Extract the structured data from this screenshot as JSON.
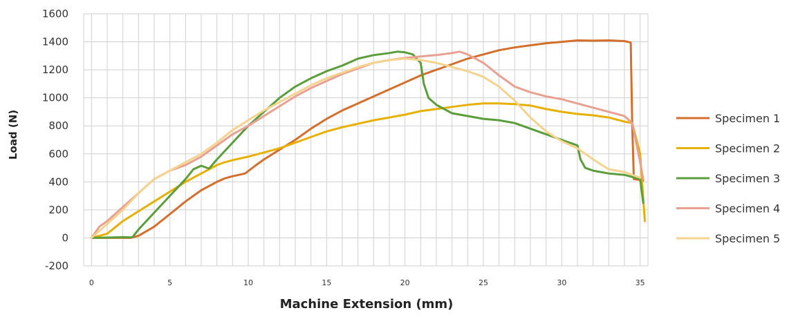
{
  "chart_data": {
    "type": "line",
    "title": "",
    "xlabel": "Machine Extension (mm)",
    "ylabel": "Load (N)",
    "xlim": [
      -0.5,
      35.5
    ],
    "ylim": [
      -200,
      1600
    ],
    "x_ticks": [
      0,
      5,
      10,
      15,
      20,
      25,
      30,
      35
    ],
    "y_ticks": [
      -200,
      0,
      200,
      400,
      600,
      800,
      1000,
      1200,
      1400,
      1600
    ],
    "x_minor_step": 1,
    "grid": true,
    "legend_position": "right",
    "series": [
      {
        "name": "Specimen 1",
        "color": "#d46e2b",
        "points": [
          [
            0,
            0
          ],
          [
            2.5,
            0
          ],
          [
            3,
            15
          ],
          [
            4,
            80
          ],
          [
            5,
            170
          ],
          [
            6,
            260
          ],
          [
            7,
            340
          ],
          [
            8,
            400
          ],
          [
            8.5,
            425
          ],
          [
            9,
            440
          ],
          [
            9.8,
            460
          ],
          [
            10.5,
            520
          ],
          [
            11,
            560
          ],
          [
            12,
            630
          ],
          [
            13,
            700
          ],
          [
            14,
            780
          ],
          [
            15,
            850
          ],
          [
            16,
            910
          ],
          [
            17,
            960
          ],
          [
            18,
            1010
          ],
          [
            19,
            1060
          ],
          [
            20,
            1110
          ],
          [
            21,
            1160
          ],
          [
            22,
            1200
          ],
          [
            23,
            1240
          ],
          [
            24,
            1280
          ],
          [
            25,
            1310
          ],
          [
            26,
            1340
          ],
          [
            27,
            1360
          ],
          [
            28,
            1375
          ],
          [
            29,
            1390
          ],
          [
            30,
            1400
          ],
          [
            31,
            1410
          ],
          [
            32,
            1408
          ],
          [
            33,
            1410
          ],
          [
            34,
            1405
          ],
          [
            34.4,
            1395
          ],
          [
            34.5,
            800
          ],
          [
            34.6,
            420
          ],
          [
            35.2,
            410
          ]
        ]
      },
      {
        "name": "Specimen 2",
        "color": "#e7b000",
        "points": [
          [
            0,
            0
          ],
          [
            1,
            30
          ],
          [
            2,
            120
          ],
          [
            3,
            190
          ],
          [
            4,
            260
          ],
          [
            5,
            330
          ],
          [
            6,
            400
          ],
          [
            7,
            460
          ],
          [
            8,
            520
          ],
          [
            8.5,
            540
          ],
          [
            9,
            555
          ],
          [
            10,
            580
          ],
          [
            11,
            610
          ],
          [
            12,
            640
          ],
          [
            13,
            680
          ],
          [
            14,
            720
          ],
          [
            15,
            760
          ],
          [
            16,
            790
          ],
          [
            17,
            815
          ],
          [
            18,
            840
          ],
          [
            19,
            860
          ],
          [
            20,
            880
          ],
          [
            21,
            905
          ],
          [
            22,
            920
          ],
          [
            23,
            935
          ],
          [
            24,
            950
          ],
          [
            25,
            960
          ],
          [
            26,
            960
          ],
          [
            27,
            955
          ],
          [
            28,
            945
          ],
          [
            29,
            920
          ],
          [
            30,
            900
          ],
          [
            31,
            885
          ],
          [
            32,
            875
          ],
          [
            33,
            860
          ],
          [
            34,
            830
          ],
          [
            34.5,
            820
          ],
          [
            35,
            600
          ],
          [
            35.3,
            120
          ]
        ]
      },
      {
        "name": "Specimen 3",
        "color": "#5a9e3a",
        "points": [
          [
            0,
            0
          ],
          [
            1,
            2
          ],
          [
            2,
            5
          ],
          [
            2.6,
            3
          ],
          [
            3,
            60
          ],
          [
            4,
            180
          ],
          [
            5,
            300
          ],
          [
            6,
            420
          ],
          [
            6.5,
            490
          ],
          [
            7,
            515
          ],
          [
            7.5,
            495
          ],
          [
            8,
            560
          ],
          [
            9,
            680
          ],
          [
            10,
            800
          ],
          [
            11,
            900
          ],
          [
            12,
            1000
          ],
          [
            13,
            1080
          ],
          [
            14,
            1140
          ],
          [
            15,
            1190
          ],
          [
            16,
            1230
          ],
          [
            17,
            1280
          ],
          [
            18,
            1305
          ],
          [
            19,
            1320
          ],
          [
            19.5,
            1330
          ],
          [
            20,
            1325
          ],
          [
            20.5,
            1310
          ],
          [
            21,
            1250
          ],
          [
            21.2,
            1100
          ],
          [
            21.5,
            1000
          ],
          [
            22,
            950
          ],
          [
            23,
            890
          ],
          [
            24,
            870
          ],
          [
            25,
            850
          ],
          [
            26,
            840
          ],
          [
            27,
            820
          ],
          [
            28,
            780
          ],
          [
            29,
            740
          ],
          [
            30,
            700
          ],
          [
            31,
            660
          ],
          [
            31.2,
            560
          ],
          [
            31.5,
            500
          ],
          [
            32,
            480
          ],
          [
            33,
            460
          ],
          [
            34,
            450
          ],
          [
            35,
            420
          ],
          [
            35.2,
            250
          ]
        ]
      },
      {
        "name": "Specimen 4",
        "color": "#e8a090",
        "points": [
          [
            0,
            0
          ],
          [
            0.5,
            80
          ],
          [
            1,
            120
          ],
          [
            2,
            220
          ],
          [
            3,
            320
          ],
          [
            4,
            420
          ],
          [
            5,
            480
          ],
          [
            6,
            520
          ],
          [
            7,
            580
          ],
          [
            8,
            660
          ],
          [
            9,
            740
          ],
          [
            10,
            800
          ],
          [
            11,
            870
          ],
          [
            12,
            940
          ],
          [
            13,
            1010
          ],
          [
            14,
            1070
          ],
          [
            15,
            1120
          ],
          [
            16,
            1170
          ],
          [
            17,
            1210
          ],
          [
            18,
            1250
          ],
          [
            19,
            1270
          ],
          [
            20,
            1285
          ],
          [
            21,
            1295
          ],
          [
            22,
            1305
          ],
          [
            23,
            1320
          ],
          [
            23.5,
            1330
          ],
          [
            24,
            1310
          ],
          [
            25,
            1250
          ],
          [
            26,
            1160
          ],
          [
            27,
            1080
          ],
          [
            28,
            1040
          ],
          [
            29,
            1010
          ],
          [
            30,
            990
          ],
          [
            31,
            960
          ],
          [
            32,
            930
          ],
          [
            33,
            900
          ],
          [
            34,
            870
          ],
          [
            34.5,
            820
          ],
          [
            35,
            540
          ],
          [
            35.2,
            420
          ]
        ]
      },
      {
        "name": "Specimen 5",
        "color": "#f5d28e",
        "points": [
          [
            0,
            0
          ],
          [
            1,
            100
          ],
          [
            2,
            200
          ],
          [
            3,
            320
          ],
          [
            4,
            420
          ],
          [
            5,
            480
          ],
          [
            6,
            540
          ],
          [
            7,
            600
          ],
          [
            8,
            680
          ],
          [
            9,
            770
          ],
          [
            10,
            840
          ],
          [
            11,
            910
          ],
          [
            12,
            970
          ],
          [
            13,
            1030
          ],
          [
            14,
            1090
          ],
          [
            15,
            1140
          ],
          [
            16,
            1180
          ],
          [
            17,
            1220
          ],
          [
            18,
            1250
          ],
          [
            19,
            1270
          ],
          [
            20,
            1280
          ],
          [
            21,
            1270
          ],
          [
            22,
            1250
          ],
          [
            23,
            1220
          ],
          [
            24,
            1190
          ],
          [
            25,
            1150
          ],
          [
            26,
            1080
          ],
          [
            27,
            980
          ],
          [
            28,
            860
          ],
          [
            29,
            760
          ],
          [
            30,
            690
          ],
          [
            31,
            640
          ],
          [
            32,
            560
          ],
          [
            33,
            490
          ],
          [
            34,
            470
          ],
          [
            35,
            430
          ]
        ]
      }
    ]
  }
}
